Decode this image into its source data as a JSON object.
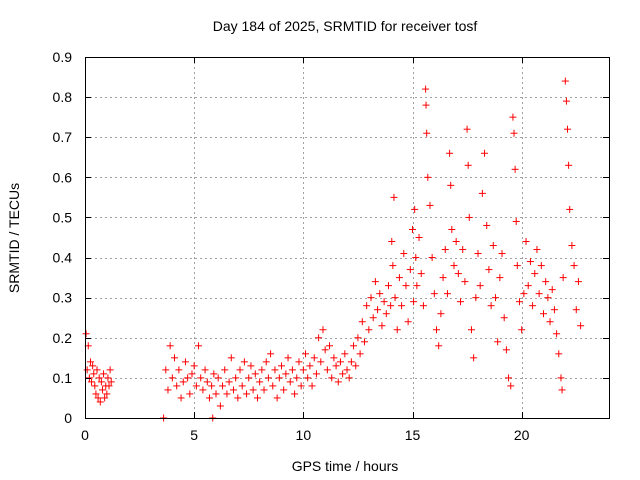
{
  "chart_data": {
    "type": "scatter",
    "title": "Day 184 of 2025, SRMTID for receiver tosf",
    "xlabel": "GPS time / hours",
    "ylabel": "SRMTID / TECUs",
    "xlim": [
      0,
      24
    ],
    "ylim": [
      0,
      0.9
    ],
    "xticks": [
      0,
      5,
      10,
      15,
      20
    ],
    "yticks": [
      0,
      0.1,
      0.2,
      0.3,
      0.4,
      0.5,
      0.6,
      0.7,
      0.8,
      0.9
    ],
    "grid": true,
    "marker": "+",
    "color": "#ff0000",
    "series": [
      {
        "name": "SRMTID",
        "points": [
          [
            0.05,
            0.21
          ],
          [
            0.1,
            0.12
          ],
          [
            0.15,
            0.18
          ],
          [
            0.2,
            0.1
          ],
          [
            0.25,
            0.14
          ],
          [
            0.3,
            0.09
          ],
          [
            0.35,
            0.13
          ],
          [
            0.4,
            0.11
          ],
          [
            0.45,
            0.08
          ],
          [
            0.5,
            0.06
          ],
          [
            0.55,
            0.12
          ],
          [
            0.6,
            0.05
          ],
          [
            0.65,
            0.1
          ],
          [
            0.7,
            0.04
          ],
          [
            0.75,
            0.09
          ],
          [
            0.8,
            0.07
          ],
          [
            0.85,
            0.11
          ],
          [
            0.9,
            0.05
          ],
          [
            0.95,
            0.08
          ],
          [
            1.0,
            0.06
          ],
          [
            1.05,
            0.1
          ],
          [
            1.1,
            0.08
          ],
          [
            1.15,
            0.12
          ],
          [
            1.2,
            0.09
          ],
          [
            3.6,
            0.0
          ],
          [
            5.85,
            0.0
          ],
          [
            3.7,
            0.12
          ],
          [
            3.8,
            0.07
          ],
          [
            3.9,
            0.18
          ],
          [
            4.0,
            0.1
          ],
          [
            4.1,
            0.15
          ],
          [
            4.2,
            0.08
          ],
          [
            4.3,
            0.12
          ],
          [
            4.4,
            0.05
          ],
          [
            4.5,
            0.09
          ],
          [
            4.6,
            0.14
          ],
          [
            4.7,
            0.1
          ],
          [
            4.8,
            0.06
          ],
          [
            4.9,
            0.11
          ],
          [
            5.0,
            0.13
          ],
          [
            5.1,
            0.08
          ],
          [
            5.2,
            0.18
          ],
          [
            5.3,
            0.1
          ],
          [
            5.4,
            0.07
          ],
          [
            5.5,
            0.12
          ],
          [
            5.6,
            0.09
          ],
          [
            5.7,
            0.05
          ],
          [
            5.8,
            0.08
          ],
          [
            5.9,
            0.11
          ],
          [
            6.0,
            0.06
          ],
          [
            6.1,
            0.1
          ],
          [
            6.2,
            0.03
          ],
          [
            6.3,
            0.08
          ],
          [
            6.4,
            0.12
          ],
          [
            6.5,
            0.06
          ],
          [
            6.6,
            0.09
          ],
          [
            6.7,
            0.15
          ],
          [
            6.8,
            0.07
          ],
          [
            6.9,
            0.1
          ],
          [
            7.0,
            0.05
          ],
          [
            7.1,
            0.12
          ],
          [
            7.2,
            0.08
          ],
          [
            7.3,
            0.14
          ],
          [
            7.4,
            0.06
          ],
          [
            7.5,
            0.1
          ],
          [
            7.6,
            0.13
          ],
          [
            7.7,
            0.07
          ],
          [
            7.8,
            0.11
          ],
          [
            7.9,
            0.05
          ],
          [
            8.0,
            0.09
          ],
          [
            8.1,
            0.12
          ],
          [
            8.2,
            0.07
          ],
          [
            8.3,
            0.14
          ],
          [
            8.4,
            0.1
          ],
          [
            8.5,
            0.16
          ],
          [
            8.6,
            0.08
          ],
          [
            8.7,
            0.12
          ],
          [
            8.8,
            0.05
          ],
          [
            8.9,
            0.1
          ],
          [
            9.0,
            0.13
          ],
          [
            9.1,
            0.07
          ],
          [
            9.2,
            0.11
          ],
          [
            9.3,
            0.15
          ],
          [
            9.4,
            0.09
          ],
          [
            9.5,
            0.12
          ],
          [
            9.6,
            0.06
          ],
          [
            9.7,
            0.1
          ],
          [
            9.8,
            0.14
          ],
          [
            9.9,
            0.08
          ],
          [
            10.0,
            0.12
          ],
          [
            10.1,
            0.16
          ],
          [
            10.2,
            0.1
          ],
          [
            10.3,
            0.13
          ],
          [
            10.4,
            0.08
          ],
          [
            10.5,
            0.15
          ],
          [
            10.6,
            0.11
          ],
          [
            10.7,
            0.2
          ],
          [
            10.8,
            0.14
          ],
          [
            10.9,
            0.22
          ],
          [
            11.0,
            0.17
          ],
          [
            11.1,
            0.12
          ],
          [
            11.2,
            0.18
          ],
          [
            11.3,
            0.1
          ],
          [
            11.4,
            0.15
          ],
          [
            11.5,
            0.13
          ],
          [
            11.6,
            0.09
          ],
          [
            11.7,
            0.14
          ],
          [
            11.8,
            0.11
          ],
          [
            11.9,
            0.16
          ],
          [
            12.0,
            0.12
          ],
          [
            12.1,
            0.1
          ],
          [
            12.2,
            0.14
          ],
          [
            12.3,
            0.18
          ],
          [
            12.4,
            0.13
          ],
          [
            12.5,
            0.2
          ],
          [
            12.6,
            0.16
          ],
          [
            12.7,
            0.24
          ],
          [
            12.8,
            0.19
          ],
          [
            12.9,
            0.28
          ],
          [
            13.0,
            0.22
          ],
          [
            13.1,
            0.3
          ],
          [
            13.2,
            0.25
          ],
          [
            13.3,
            0.34
          ],
          [
            13.4,
            0.27
          ],
          [
            13.5,
            0.31
          ],
          [
            13.6,
            0.23
          ],
          [
            13.7,
            0.29
          ],
          [
            13.8,
            0.26
          ],
          [
            13.9,
            0.33
          ],
          [
            14.0,
            0.28
          ],
          [
            14.05,
            0.44
          ],
          [
            14.1,
            0.38
          ],
          [
            14.15,
            0.55
          ],
          [
            14.2,
            0.3
          ],
          [
            14.3,
            0.22
          ],
          [
            14.4,
            0.35
          ],
          [
            14.5,
            0.28
          ],
          [
            14.6,
            0.41
          ],
          [
            14.7,
            0.33
          ],
          [
            14.8,
            0.24
          ],
          [
            14.9,
            0.37
          ],
          [
            15.0,
            0.47
          ],
          [
            15.05,
            0.29
          ],
          [
            15.1,
            0.52
          ],
          [
            15.15,
            0.4
          ],
          [
            15.2,
            0.33
          ],
          [
            15.3,
            0.45
          ],
          [
            15.4,
            0.36
          ],
          [
            15.5,
            0.28
          ],
          [
            15.6,
            0.82
          ],
          [
            15.62,
            0.78
          ],
          [
            15.65,
            0.71
          ],
          [
            15.7,
            0.6
          ],
          [
            15.8,
            0.53
          ],
          [
            15.9,
            0.4
          ],
          [
            16.0,
            0.31
          ],
          [
            16.1,
            0.22
          ],
          [
            16.2,
            0.18
          ],
          [
            16.3,
            0.26
          ],
          [
            16.4,
            0.35
          ],
          [
            16.5,
            0.42
          ],
          [
            16.6,
            0.31
          ],
          [
            16.7,
            0.66
          ],
          [
            16.75,
            0.58
          ],
          [
            16.8,
            0.47
          ],
          [
            16.9,
            0.38
          ],
          [
            17.0,
            0.44
          ],
          [
            17.1,
            0.36
          ],
          [
            17.2,
            0.29
          ],
          [
            17.3,
            0.42
          ],
          [
            17.4,
            0.34
          ],
          [
            17.5,
            0.72
          ],
          [
            17.55,
            0.63
          ],
          [
            17.6,
            0.5
          ],
          [
            17.7,
            0.22
          ],
          [
            17.8,
            0.15
          ],
          [
            17.9,
            0.3
          ],
          [
            18.0,
            0.41
          ],
          [
            18.1,
            0.33
          ],
          [
            18.2,
            0.56
          ],
          [
            18.3,
            0.66
          ],
          [
            18.4,
            0.48
          ],
          [
            18.5,
            0.37
          ],
          [
            18.6,
            0.28
          ],
          [
            18.7,
            0.43
          ],
          [
            18.8,
            0.3
          ],
          [
            18.9,
            0.19
          ],
          [
            19.0,
            0.35
          ],
          [
            19.1,
            0.41
          ],
          [
            19.2,
            0.25
          ],
          [
            19.3,
            0.17
          ],
          [
            19.4,
            0.1
          ],
          [
            19.5,
            0.08
          ],
          [
            19.6,
            0.75
          ],
          [
            19.65,
            0.71
          ],
          [
            19.7,
            0.62
          ],
          [
            19.75,
            0.49
          ],
          [
            19.8,
            0.38
          ],
          [
            19.9,
            0.29
          ],
          [
            20.0,
            0.22
          ],
          [
            20.1,
            0.31
          ],
          [
            20.2,
            0.44
          ],
          [
            20.3,
            0.33
          ],
          [
            20.4,
            0.39
          ],
          [
            20.5,
            0.28
          ],
          [
            20.6,
            0.36
          ],
          [
            20.7,
            0.42
          ],
          [
            20.8,
            0.31
          ],
          [
            20.9,
            0.38
          ],
          [
            21.0,
            0.26
          ],
          [
            21.1,
            0.34
          ],
          [
            21.2,
            0.3
          ],
          [
            21.3,
            0.24
          ],
          [
            21.4,
            0.32
          ],
          [
            21.5,
            0.27
          ],
          [
            21.6,
            0.21
          ],
          [
            21.7,
            0.16
          ],
          [
            21.8,
            0.1
          ],
          [
            21.85,
            0.07
          ],
          [
            21.9,
            0.35
          ],
          [
            22.0,
            0.84
          ],
          [
            22.05,
            0.79
          ],
          [
            22.1,
            0.72
          ],
          [
            22.15,
            0.63
          ],
          [
            22.2,
            0.52
          ],
          [
            22.3,
            0.43
          ],
          [
            22.4,
            0.38
          ],
          [
            22.5,
            0.27
          ],
          [
            22.6,
            0.34
          ],
          [
            22.7,
            0.23
          ]
        ]
      }
    ]
  }
}
